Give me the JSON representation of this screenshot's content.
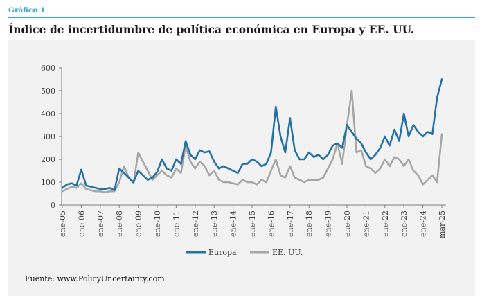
{
  "figure_label": "Gráfico 1",
  "title": "Índice de incertidumbre de política económica en Europa y EE. UU.",
  "source": "Fuente: www.PolicyUncertainty.com.",
  "colors": {
    "europa": "#2471a3",
    "eeuu": "#a6a6a6",
    "accent": "#3aa6c9"
  },
  "chart_data": {
    "type": "line",
    "title": "Índice de incertidumbre de política económica en Europa y EE. UU.",
    "xlabel": "",
    "ylabel": "",
    "ylim": [
      0,
      600
    ],
    "yticks": [
      0,
      100,
      200,
      300,
      400,
      500,
      600
    ],
    "xticks": [
      "ene-05",
      "ene-06",
      "ene-07",
      "ene-08",
      "ene-09",
      "ene-10",
      "ene-11",
      "ene-12",
      "ene-13",
      "ene-14",
      "ene-15",
      "ene-16",
      "ene-17",
      "ene-18",
      "ene-19",
      "ene-20",
      "ene-21",
      "ene-22",
      "ene-23",
      "ene-24",
      "mar-25"
    ],
    "grid": false,
    "legend": "bottom",
    "frequency": "quarterly",
    "x": [
      "2005-Q1",
      "2005-Q2",
      "2005-Q3",
      "2005-Q4",
      "2006-Q1",
      "2006-Q2",
      "2006-Q3",
      "2006-Q4",
      "2007-Q1",
      "2007-Q2",
      "2007-Q3",
      "2007-Q4",
      "2008-Q1",
      "2008-Q2",
      "2008-Q3",
      "2008-Q4",
      "2009-Q1",
      "2009-Q2",
      "2009-Q3",
      "2009-Q4",
      "2010-Q1",
      "2010-Q2",
      "2010-Q3",
      "2010-Q4",
      "2011-Q1",
      "2011-Q2",
      "2011-Q3",
      "2011-Q4",
      "2012-Q1",
      "2012-Q2",
      "2012-Q3",
      "2012-Q4",
      "2013-Q1",
      "2013-Q2",
      "2013-Q3",
      "2013-Q4",
      "2014-Q1",
      "2014-Q2",
      "2014-Q3",
      "2014-Q4",
      "2015-Q1",
      "2015-Q2",
      "2015-Q3",
      "2015-Q4",
      "2016-Q1",
      "2016-Q2",
      "2016-Q3",
      "2016-Q4",
      "2017-Q1",
      "2017-Q2",
      "2017-Q3",
      "2017-Q4",
      "2018-Q1",
      "2018-Q2",
      "2018-Q3",
      "2018-Q4",
      "2019-Q1",
      "2019-Q2",
      "2019-Q3",
      "2019-Q4",
      "2020-Q1",
      "2020-Q2",
      "2020-Q3",
      "2020-Q4",
      "2021-Q1",
      "2021-Q2",
      "2021-Q3",
      "2021-Q4",
      "2022-Q1",
      "2022-Q2",
      "2022-Q3",
      "2022-Q4",
      "2023-Q1",
      "2023-Q2",
      "2023-Q3",
      "2023-Q4",
      "2024-Q1",
      "2024-Q2",
      "2024-Q3",
      "2024-Q4",
      "2025-Q1"
    ],
    "series": [
      {
        "name": "Europa",
        "color": "#2471a3",
        "values": [
          75,
          90,
          95,
          85,
          155,
          85,
          80,
          75,
          70,
          70,
          75,
          65,
          160,
          140,
          120,
          100,
          150,
          130,
          110,
          120,
          145,
          200,
          160,
          150,
          200,
          180,
          280,
          220,
          200,
          240,
          230,
          235,
          190,
          160,
          170,
          160,
          150,
          140,
          180,
          180,
          200,
          190,
          170,
          180,
          230,
          430,
          300,
          230,
          380,
          240,
          200,
          200,
          230,
          210,
          220,
          200,
          220,
          260,
          270,
          250,
          350,
          320,
          290,
          270,
          230,
          200,
          220,
          250,
          300,
          260,
          330,
          280,
          400,
          300,
          350,
          320,
          300,
          320,
          310,
          470,
          550
        ]
      },
      {
        "name": "EE. UU.",
        "color": "#a6a6a6",
        "values": [
          60,
          70,
          80,
          75,
          95,
          70,
          65,
          60,
          60,
          55,
          60,
          60,
          100,
          170,
          120,
          95,
          230,
          190,
          150,
          110,
          130,
          150,
          130,
          120,
          160,
          140,
          260,
          190,
          160,
          190,
          170,
          130,
          150,
          110,
          100,
          100,
          95,
          90,
          110,
          100,
          100,
          90,
          110,
          100,
          150,
          200,
          130,
          120,
          170,
          120,
          110,
          100,
          110,
          110,
          110,
          120,
          160,
          200,
          270,
          180,
          350,
          500,
          230,
          240,
          170,
          160,
          140,
          160,
          200,
          170,
          210,
          200,
          170,
          200,
          150,
          130,
          90,
          110,
          130,
          100,
          310
        ]
      }
    ]
  },
  "legend": [
    {
      "label": "Europa",
      "color": "#2471a3"
    },
    {
      "label": "EE. UU.",
      "color": "#a6a6a6"
    }
  ]
}
